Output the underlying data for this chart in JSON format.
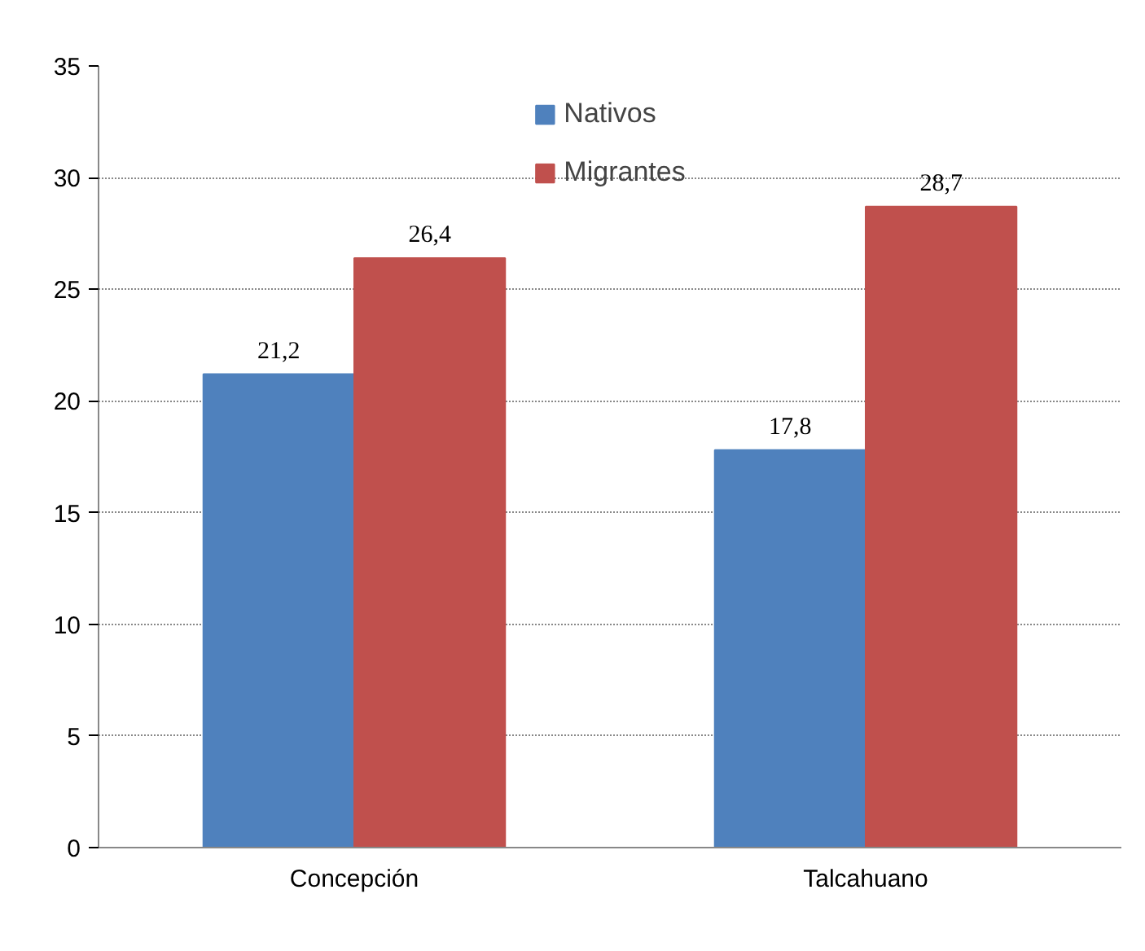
{
  "chart_data": {
    "type": "bar",
    "categories": [
      "Concepción",
      "Talcahuano"
    ],
    "series": [
      {
        "name": "Nativos",
        "color": "#4f81bd",
        "values": [
          21.2,
          17.8
        ],
        "value_labels": [
          "21,2",
          "17,8"
        ]
      },
      {
        "name": "Migrantes",
        "color": "#c0504d",
        "values": [
          26.4,
          28.7
        ],
        "value_labels": [
          "26,4",
          "28,7"
        ]
      }
    ],
    "ylim": [
      0,
      35
    ],
    "yticks": [
      0,
      5,
      10,
      15,
      20,
      25,
      30,
      35
    ],
    "grid": "y",
    "legend": "top"
  }
}
